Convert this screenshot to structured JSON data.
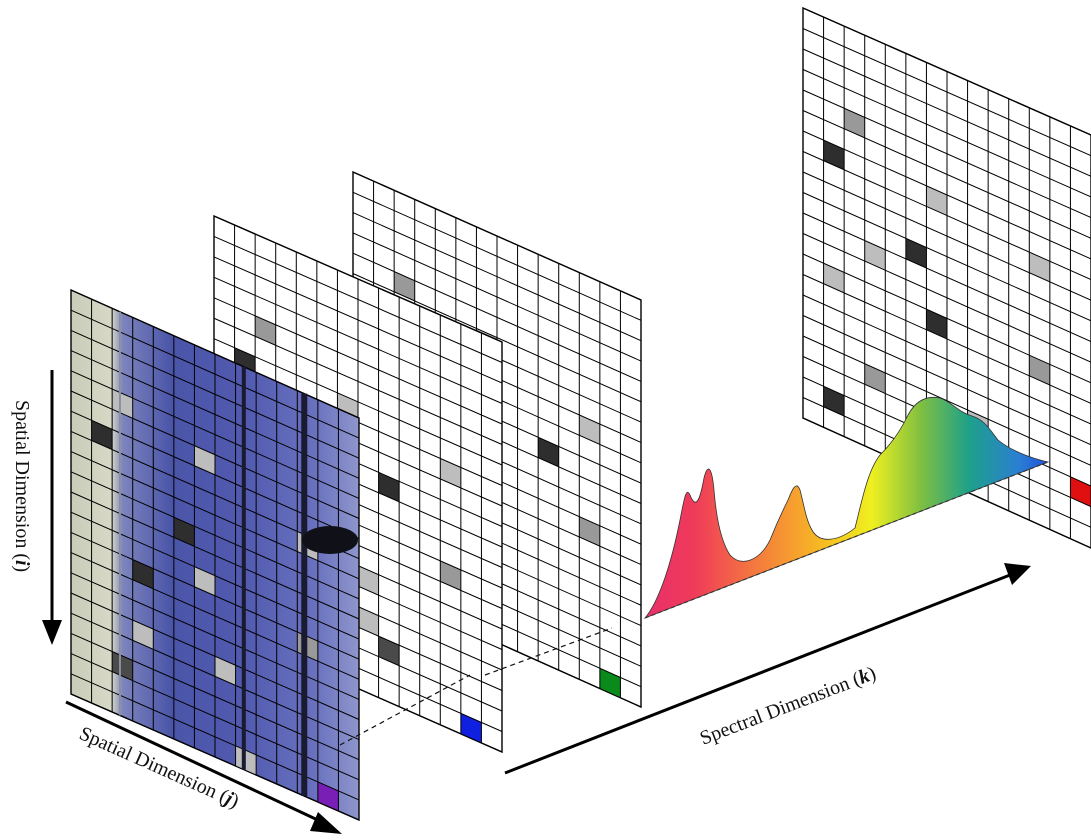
{
  "labels": {
    "spatial_i_prefix": "Spatial Dimension (",
    "spatial_i_var": "i",
    "spatial_i_suffix": ")",
    "spatial_j_prefix": "Spatial Dimension (",
    "spatial_j_var": "j",
    "spatial_j_suffix": ")",
    "spectral_prefix": "Spectral Dimension (",
    "spectral_var": "k",
    "spectral_suffix": ")"
  },
  "colors": {
    "band_pixel_1": "#7a1fb5",
    "band_pixel_2": "#1020e0",
    "band_pixel_3": "#0a8a1a",
    "band_pixel_4": "#e01010",
    "image_blue": "#5a62b4",
    "grid_line": "#000000"
  }
}
